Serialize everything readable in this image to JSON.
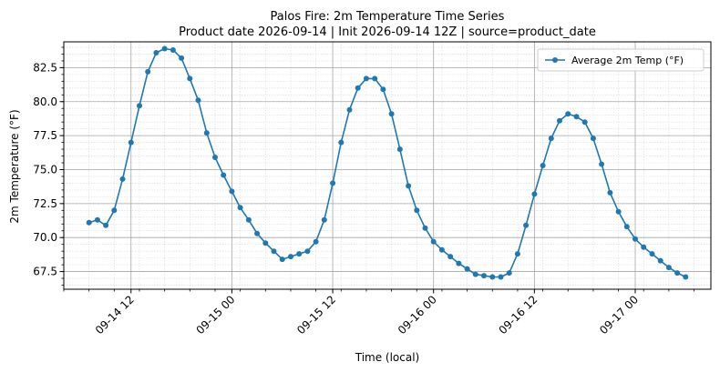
{
  "chart_data": {
    "type": "line",
    "title": "Palos Fire: 2m Temperature Time Series",
    "subtitle": "Product date 2026-09-14 | Init 2026-09-14 12Z | source=product_date",
    "xlabel": "Time (local)",
    "ylabel": "2m Temperature (°F)",
    "x_ticks": [
      {
        "label": "09-14 12",
        "value": "2026-09-14T12:00"
      },
      {
        "label": "09-15 00",
        "value": "2026-09-15T00:00"
      },
      {
        "label": "09-15 12",
        "value": "2026-09-15T12:00"
      },
      {
        "label": "09-16 00",
        "value": "2026-09-16T00:00"
      },
      {
        "label": "09-16 12",
        "value": "2026-09-16T12:00"
      },
      {
        "label": "09-17 00",
        "value": "2026-09-17T00:00"
      }
    ],
    "y_ticks": [
      "67.5",
      "70.0",
      "72.5",
      "75.0",
      "77.5",
      "80.0",
      "82.5"
    ],
    "xlim": [
      "2026-09-14T04:00",
      "2026-09-17T09:00"
    ],
    "ylim": [
      66.2,
      84.4
    ],
    "grid": true,
    "legend_position": "top-right",
    "series": [
      {
        "name": "Average 2m Temp (°F)",
        "color": "#1f77b4",
        "marker": "circle",
        "x": [
          "2026-09-14T07:00",
          "2026-09-14T08:00",
          "2026-09-14T09:00",
          "2026-09-14T10:00",
          "2026-09-14T11:00",
          "2026-09-14T12:00",
          "2026-09-14T13:00",
          "2026-09-14T14:00",
          "2026-09-14T15:00",
          "2026-09-14T16:00",
          "2026-09-14T17:00",
          "2026-09-14T18:00",
          "2026-09-14T19:00",
          "2026-09-14T20:00",
          "2026-09-14T21:00",
          "2026-09-14T22:00",
          "2026-09-14T23:00",
          "2026-09-15T00:00",
          "2026-09-15T01:00",
          "2026-09-15T02:00",
          "2026-09-15T03:00",
          "2026-09-15T04:00",
          "2026-09-15T05:00",
          "2026-09-15T06:00",
          "2026-09-15T07:00",
          "2026-09-15T08:00",
          "2026-09-15T09:00",
          "2026-09-15T10:00",
          "2026-09-15T11:00",
          "2026-09-15T12:00",
          "2026-09-15T13:00",
          "2026-09-15T14:00",
          "2026-09-15T15:00",
          "2026-09-15T16:00",
          "2026-09-15T17:00",
          "2026-09-15T18:00",
          "2026-09-15T19:00",
          "2026-09-15T20:00",
          "2026-09-15T21:00",
          "2026-09-15T22:00",
          "2026-09-15T23:00",
          "2026-09-16T00:00",
          "2026-09-16T01:00",
          "2026-09-16T02:00",
          "2026-09-16T03:00",
          "2026-09-16T04:00",
          "2026-09-16T05:00",
          "2026-09-16T06:00",
          "2026-09-16T07:00",
          "2026-09-16T08:00",
          "2026-09-16T09:00",
          "2026-09-16T10:00",
          "2026-09-16T11:00",
          "2026-09-16T12:00",
          "2026-09-16T13:00",
          "2026-09-16T14:00",
          "2026-09-16T15:00",
          "2026-09-16T16:00",
          "2026-09-16T17:00",
          "2026-09-16T18:00",
          "2026-09-16T19:00",
          "2026-09-16T20:00",
          "2026-09-16T21:00",
          "2026-09-16T22:00",
          "2026-09-16T23:00",
          "2026-09-17T00:00",
          "2026-09-17T01:00",
          "2026-09-17T02:00",
          "2026-09-17T03:00",
          "2026-09-17T04:00",
          "2026-09-17T05:00",
          "2026-09-17T06:00"
        ],
        "y": [
          71.1,
          71.3,
          70.9,
          72.0,
          74.3,
          77.0,
          79.7,
          82.2,
          83.6,
          83.9,
          83.8,
          83.2,
          81.7,
          80.1,
          77.7,
          75.9,
          74.6,
          73.4,
          72.2,
          71.3,
          70.3,
          69.6,
          69.0,
          68.4,
          68.6,
          68.8,
          69.0,
          69.7,
          71.3,
          74.0,
          77.0,
          79.4,
          81.0,
          81.7,
          81.7,
          80.9,
          79.1,
          76.5,
          73.8,
          72.0,
          70.7,
          69.7,
          69.1,
          68.6,
          68.1,
          67.7,
          67.3,
          67.2,
          67.1,
          67.1,
          67.4,
          68.8,
          70.9,
          73.2,
          75.3,
          77.3,
          78.6,
          79.1,
          78.9,
          78.5,
          77.3,
          75.4,
          73.3,
          71.9,
          70.8,
          69.9,
          69.3,
          68.8,
          68.3,
          67.8,
          67.4,
          67.1
        ]
      }
    ]
  }
}
